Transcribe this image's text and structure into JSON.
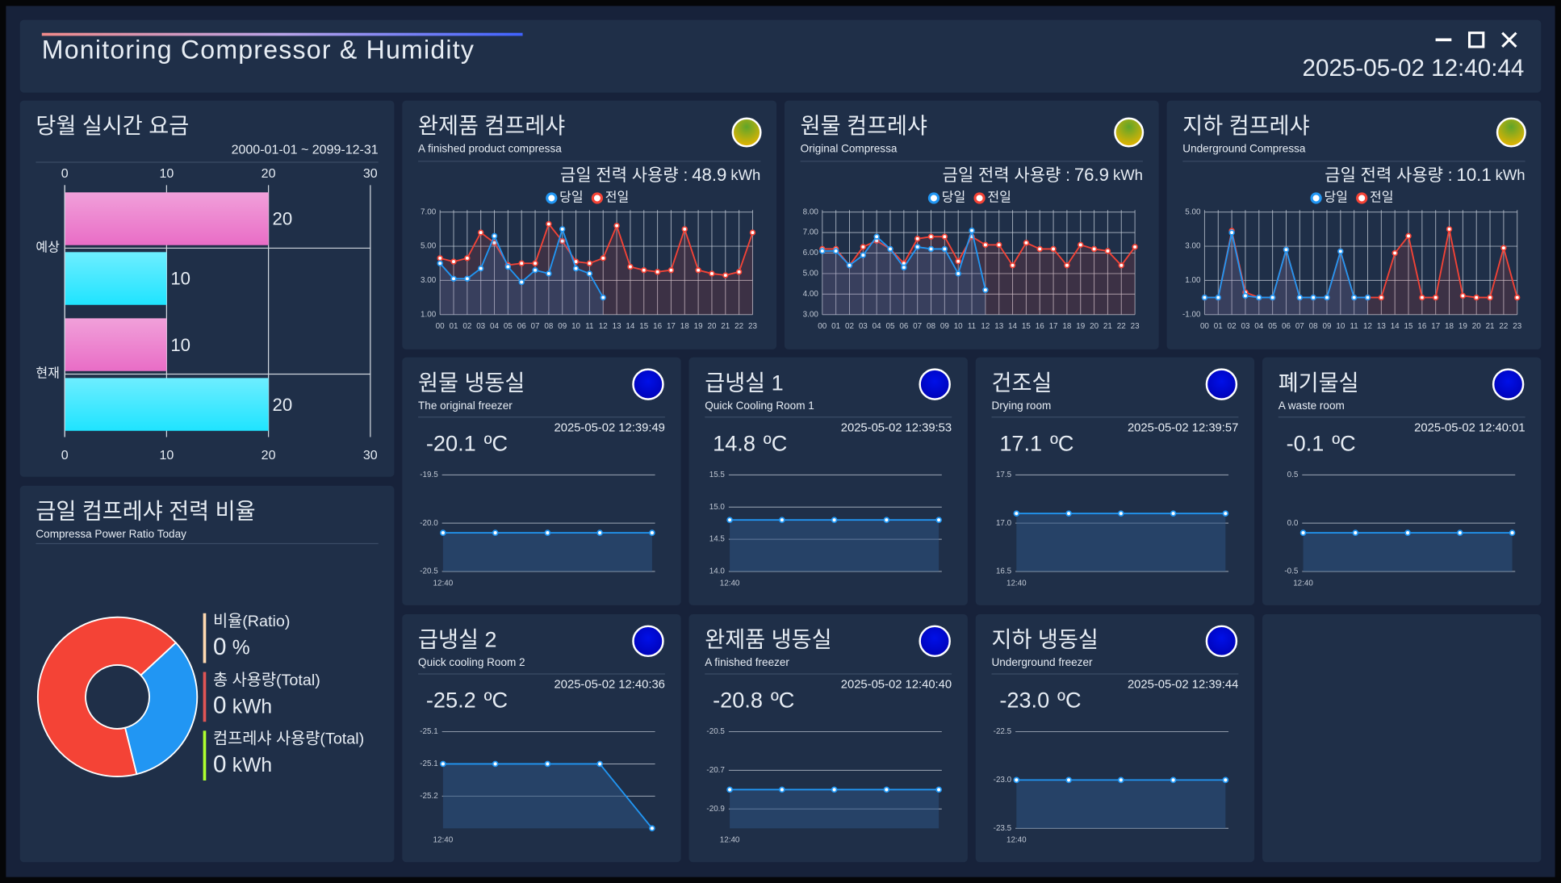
{
  "header": {
    "title": "Monitoring Compressor & Humidity",
    "datetime": "2025-05-02 12:40:44"
  },
  "billing": {
    "title": "당월 실시간 요금",
    "period": "2000-01-01 ~ 2099-12-31",
    "chart": {
      "type": "bar",
      "orientation": "horizontal",
      "categories": [
        "예상",
        "현재"
      ],
      "series": [
        {
          "color": "#e96dc6",
          "values": [
            20,
            10
          ]
        },
        {
          "color": "#1fe4ff",
          "values": [
            10,
            20
          ]
        }
      ],
      "xlim": [
        0,
        30
      ],
      "xticks": [
        0,
        10,
        20,
        30
      ],
      "grid": true
    }
  },
  "ratio": {
    "title": "금일 컴프레샤 전력 비율",
    "subtitle": "Compressa Power Ratio Today",
    "chart": {
      "type": "pie",
      "donut": true,
      "values": [
        67,
        33
      ],
      "colors": [
        "#f44336",
        "#2196f3"
      ]
    },
    "legend": [
      {
        "label": "비율(Ratio)",
        "value": "0",
        "unit": "%",
        "color": "#ffd9b0"
      },
      {
        "label": "총 사용량(Total)",
        "value": "0",
        "unit": "kWh",
        "color": "#e05555"
      },
      {
        "label": "컴프레샤 사용량(Total)",
        "value": "0",
        "unit": "kWh",
        "color": "#adff2f"
      }
    ]
  },
  "compressors": [
    {
      "title": "완제품 컴프레샤",
      "subtitle": "A finished product compressa",
      "usage_label": "금일 전력 사용량 :",
      "usage": 48.9,
      "unit": "kWh",
      "chart": {
        "type": "line",
        "categories": [
          "00",
          "01",
          "02",
          "03",
          "04",
          "05",
          "06",
          "07",
          "08",
          "09",
          "10",
          "11",
          "12",
          "13",
          "14",
          "15",
          "16",
          "17",
          "18",
          "19",
          "20",
          "21",
          "22",
          "23"
        ],
        "series": [
          {
            "name": "당일",
            "color": "#2196f3",
            "values": [
              4.0,
              3.1,
              3.1,
              3.7,
              5.6,
              3.8,
              2.9,
              3.6,
              3.4,
              6.0,
              3.7,
              3.4,
              2.0,
              null,
              null,
              null,
              null,
              null,
              null,
              null,
              null,
              null,
              null,
              null
            ]
          },
          {
            "name": "전일",
            "color": "#f44336",
            "values": [
              4.3,
              4.1,
              4.3,
              5.8,
              5.2,
              3.9,
              4.0,
              4.0,
              6.3,
              5.3,
              4.1,
              4.0,
              4.3,
              6.2,
              3.8,
              3.6,
              3.5,
              3.6,
              6.0,
              3.6,
              3.4,
              3.3,
              3.5,
              5.8
            ]
          }
        ],
        "ylim": [
          1,
          7
        ],
        "yticks": [
          {
            "value": 1,
            "label": "1.00"
          },
          {
            "value": 3,
            "label": "3.00"
          },
          {
            "value": 5,
            "label": "5.00"
          },
          {
            "value": 7,
            "label": "7.00"
          }
        ],
        "grid": true
      }
    },
    {
      "title": "원물 컴프레샤",
      "subtitle": "Original Compressa",
      "usage_label": "금일 전력 사용량 :",
      "usage": 76.9,
      "unit": "kWh",
      "chart": {
        "type": "line",
        "categories": [
          "00",
          "01",
          "02",
          "03",
          "04",
          "05",
          "06",
          "07",
          "08",
          "09",
          "10",
          "11",
          "12",
          "13",
          "14",
          "15",
          "16",
          "17",
          "18",
          "19",
          "20",
          "21",
          "22",
          "23"
        ],
        "series": [
          {
            "name": "당일",
            "color": "#2196f3",
            "values": [
              6.1,
              6.1,
              5.4,
              5.9,
              6.8,
              6.2,
              5.3,
              6.3,
              6.2,
              6.2,
              5.0,
              7.1,
              4.2,
              null,
              null,
              null,
              null,
              null,
              null,
              null,
              null,
              null,
              null,
              null
            ]
          },
          {
            "name": "전일",
            "color": "#f44336",
            "values": [
              6.2,
              6.2,
              5.4,
              6.3,
              6.6,
              6.2,
              5.5,
              6.7,
              6.8,
              6.8,
              5.6,
              6.8,
              6.4,
              6.4,
              5.4,
              6.5,
              6.2,
              6.2,
              5.4,
              6.4,
              6.2,
              6.1,
              5.4,
              6.3
            ]
          }
        ],
        "ylim": [
          3,
          8
        ],
        "yticks": [
          {
            "value": 3,
            "label": "3.00"
          },
          {
            "value": 4,
            "label": "4.00"
          },
          {
            "value": 5,
            "label": "5.00"
          },
          {
            "value": 6,
            "label": "6.00"
          },
          {
            "value": 7,
            "label": "7.00"
          },
          {
            "value": 8,
            "label": "8.00"
          }
        ],
        "grid": true
      }
    },
    {
      "title": "지하 컴프레샤",
      "subtitle": "Underground Compressa",
      "usage_label": "금일 전력 사용량 :",
      "usage": 10.1,
      "unit": "kWh",
      "chart": {
        "type": "line",
        "categories": [
          "00",
          "01",
          "02",
          "03",
          "04",
          "05",
          "06",
          "07",
          "08",
          "09",
          "10",
          "11",
          "12",
          "13",
          "14",
          "15",
          "16",
          "17",
          "18",
          "19",
          "20",
          "21",
          "22",
          "23"
        ],
        "series": [
          {
            "name": "당일",
            "color": "#2196f3",
            "values": [
              0,
              0,
              3.8,
              0.1,
              0,
              0,
              2.8,
              0,
              0,
              0,
              2.7,
              0,
              0,
              null,
              null,
              null,
              null,
              null,
              null,
              null,
              null,
              null,
              null,
              null
            ]
          },
          {
            "name": "전일",
            "color": "#f44336",
            "values": [
              0,
              0,
              3.9,
              0.3,
              0,
              0,
              2.8,
              0,
              0,
              0,
              2.7,
              0,
              0,
              0,
              2.6,
              3.6,
              0,
              0,
              4.0,
              0.1,
              0,
              0,
              2.9,
              0
            ]
          }
        ],
        "ylim": [
          -1,
          5
        ],
        "yticks": [
          {
            "value": -1,
            "label": "-1.00"
          },
          {
            "value": 1,
            "label": "1.00"
          },
          {
            "value": 3,
            "label": "3.00"
          },
          {
            "value": 5,
            "label": "5.00"
          }
        ],
        "grid": true
      }
    }
  ],
  "rooms": [
    {
      "title": "원물 냉동실",
      "subtitle": "The original freezer",
      "time": "2025-05-02 12:39:49",
      "temp": "-20.1",
      "unit": "ºC",
      "color": "#a8d4ff",
      "chart": {
        "type": "line",
        "categories": [
          "12:40",
          null,
          null,
          null,
          null
        ],
        "series": [
          {
            "color": "#2196f3",
            "values": [
              -20.1,
              -20.1,
              -20.1,
              -20.1,
              -20.1
            ]
          }
        ],
        "ylim": [
          -20.5,
          -19.5
        ],
        "yticks": [
          -20.5,
          {
            "value": -20.0,
            "label": "-20.0"
          },
          -19.5
        ],
        "grid": true
      }
    },
    {
      "title": "급냉실 1",
      "subtitle": "Quick Cooling Room 1",
      "time": "2025-05-02 12:39:53",
      "temp": "14.8",
      "unit": "ºC",
      "color": "#ff9a6a",
      "chart": {
        "type": "line",
        "categories": [
          "12:40",
          null,
          null,
          null,
          null
        ],
        "series": [
          {
            "color": "#2196f3",
            "values": [
              14.8,
              14.8,
              14.8,
              14.8,
              14.8
            ]
          }
        ],
        "ylim": [
          14.0,
          15.5
        ],
        "yticks": [
          {
            "value": 14.0,
            "label": "14.0"
          },
          14.5,
          {
            "value": 15.0,
            "label": "15.0"
          },
          15.5
        ],
        "grid": true
      }
    },
    {
      "title": "건조실",
      "subtitle": "Drying room",
      "time": "2025-05-02 12:39:57",
      "temp": "17.1",
      "unit": "ºC",
      "color": "#ff9a6a",
      "chart": {
        "type": "line",
        "categories": [
          "12:40",
          null,
          null,
          null,
          null
        ],
        "series": [
          {
            "color": "#2196f3",
            "values": [
              17.1,
              17.1,
              17.1,
              17.1,
              17.1
            ]
          }
        ],
        "ylim": [
          16.5,
          17.5
        ],
        "yticks": [
          16.5,
          {
            "value": 17.0,
            "label": "17.0"
          },
          17.5
        ],
        "grid": true
      }
    },
    {
      "title": "폐기물실",
      "subtitle": "A waste room",
      "time": "2025-05-02 12:40:01",
      "temp": "-0.1",
      "unit": "ºC",
      "color": "#a8d4ff",
      "chart": {
        "type": "line",
        "categories": [
          "12:40",
          null,
          null,
          null,
          null
        ],
        "series": [
          {
            "color": "#2196f3",
            "values": [
              -0.1,
              -0.1,
              -0.1,
              -0.1,
              -0.1
            ]
          }
        ],
        "ylim": [
          -0.5,
          0.5
        ],
        "yticks": [
          -0.5,
          {
            "value": 0.0,
            "label": "0.0"
          },
          0.5
        ],
        "grid": true
      }
    },
    {
      "title": "급냉실 2",
      "subtitle": "Quick cooling Room 2",
      "time": "2025-05-02 12:40:36",
      "temp": "-25.2",
      "unit": "ºC",
      "color": "#a8d4ff",
      "chart": {
        "type": "line",
        "categories": [
          "12:40",
          null,
          null,
          null,
          null
        ],
        "series": [
          {
            "color": "#2196f3",
            "values": [
              -25.1,
              -25.1,
              -25.1,
              -25.1,
              -25.2
            ]
          }
        ],
        "ylim": [
          -25.2,
          -25.05
        ],
        "yticks": [
          {
            "value": -25.15,
            "label": "-25.2"
          },
          {
            "value": -25.1,
            "label": "-25.1"
          },
          {
            "value": -25.05,
            "label": "-25.1"
          }
        ],
        "grid": true
      }
    },
    {
      "title": "완제품 냉동실",
      "subtitle": "A finished freezer",
      "time": "2025-05-02 12:40:40",
      "temp": "-20.8",
      "unit": "ºC",
      "color": "#a8d4ff",
      "chart": {
        "type": "line",
        "categories": [
          "12:40",
          null,
          null,
          null,
          null
        ],
        "series": [
          {
            "color": "#2196f3",
            "values": [
              -20.8,
              -20.8,
              -20.8,
              -20.8,
              -20.8
            ]
          }
        ],
        "ylim": [
          -21.0,
          -20.5
        ],
        "yticks": [
          -20.9,
          -20.7,
          -20.5
        ],
        "grid": true
      }
    },
    {
      "title": "지하 냉동실",
      "subtitle": "Underground freezer",
      "time": "2025-05-02 12:39:44",
      "temp": "-23.0",
      "unit": "ºC",
      "color": "#a8d4ff",
      "chart": {
        "type": "line",
        "categories": [
          "12:40",
          null,
          null,
          null,
          null
        ],
        "series": [
          {
            "color": "#2196f3",
            "values": [
              -23.0,
              -23.0,
              -23.0,
              -23.0,
              -23.0
            ]
          }
        ],
        "ylim": [
          -23.5,
          -22.5
        ],
        "yticks": [
          -23.5,
          {
            "value": -23.0,
            "label": "-23.0"
          },
          -22.5
        ],
        "grid": true
      }
    }
  ]
}
